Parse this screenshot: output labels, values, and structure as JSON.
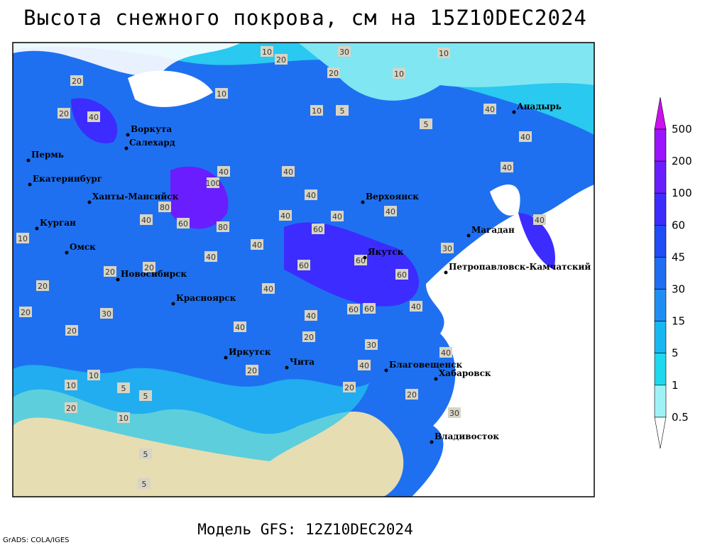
{
  "title": "Высота снежного покрова, см на 15Z10DEC2024",
  "subtitle": "Модель GFS: 12Z10DEC2024",
  "credit": "GrADS: COLA/IGES",
  "cities": [
    "Анадырь",
    "Воркута",
    "Салехард",
    "Пермь",
    "Екатеринбург",
    "Ханты-Мансийск",
    "Верхоянск",
    "Курган",
    "Омск",
    "Магадан",
    "Якутск",
    "Петропавловск-Камчатский",
    "Новосибирск",
    "Красноярск",
    "Иркутск",
    "Чита",
    "Благовещенск",
    "Хабаровск",
    "Владивосток"
  ],
  "contour_labels": [
    10,
    30,
    20,
    10,
    20,
    10,
    10,
    10,
    5,
    5,
    20,
    40,
    40,
    40,
    40,
    40,
    100,
    40,
    40,
    40,
    40,
    60,
    80,
    60,
    80,
    40,
    60,
    60,
    60,
    40,
    60,
    40,
    40,
    20,
    20,
    30,
    20,
    10,
    20,
    20,
    20,
    40,
    30,
    20,
    40,
    40,
    20,
    20,
    20,
    10,
    10,
    5,
    5,
    20,
    30,
    10,
    5,
    5,
    30,
    40,
    40,
    60,
    40,
    40
  ],
  "legend": {
    "levels": [
      500,
      200,
      100,
      60,
      45,
      30,
      15,
      5,
      1,
      0.5
    ],
    "colors": [
      "#cc10f0",
      "#9a14ff",
      "#6a1eff",
      "#3c2cff",
      "#1f4cf5",
      "#1e6ef2",
      "#1f8ef2",
      "#17b8f2",
      "#1ed8ee",
      "#9ef2f6",
      "#ffffff"
    ]
  }
}
